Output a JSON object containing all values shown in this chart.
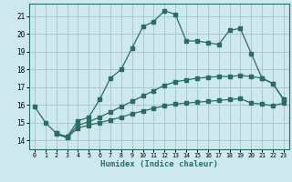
{
  "title": "",
  "xlabel": "Humidex (Indice chaleur)",
  "bg_color": "#cde8ee",
  "grid_color": "#a8c8d0",
  "line_color": "#2a6e62",
  "xlim": [
    -0.5,
    23.5
  ],
  "ylim": [
    13.5,
    21.7
  ],
  "yticks": [
    14,
    15,
    16,
    17,
    18,
    19,
    20,
    21
  ],
  "xticks": [
    0,
    1,
    2,
    3,
    4,
    5,
    6,
    7,
    8,
    9,
    10,
    11,
    12,
    13,
    14,
    15,
    16,
    17,
    18,
    19,
    20,
    21,
    22,
    23
  ],
  "curve1_x": [
    0,
    1,
    2,
    3,
    4,
    5,
    6,
    7,
    8,
    9,
    10,
    11,
    12,
    13,
    14,
    15,
    16,
    17,
    18,
    19,
    20,
    21,
    22,
    23
  ],
  "curve1_y": [
    15.9,
    15.0,
    14.4,
    14.2,
    15.1,
    15.3,
    16.3,
    17.5,
    18.0,
    19.2,
    20.4,
    20.7,
    21.3,
    21.1,
    19.6,
    19.6,
    19.5,
    19.4,
    20.2,
    20.3,
    18.9,
    17.5,
    17.2,
    16.3
  ],
  "curve2_x": [
    2,
    3,
    4,
    5,
    6,
    7,
    8,
    9,
    10,
    11,
    12,
    13,
    14,
    15,
    16,
    17,
    18,
    19,
    20,
    21,
    22,
    23
  ],
  "curve2_y": [
    14.4,
    14.2,
    14.85,
    15.05,
    15.3,
    15.6,
    15.9,
    16.2,
    16.5,
    16.8,
    17.1,
    17.3,
    17.4,
    17.5,
    17.55,
    17.6,
    17.6,
    17.65,
    17.6,
    17.5,
    17.2,
    16.3
  ],
  "curve3_x": [
    2,
    3,
    4,
    5,
    6,
    7,
    8,
    9,
    10,
    11,
    12,
    13,
    14,
    15,
    16,
    17,
    18,
    19,
    20,
    21,
    22,
    23
  ],
  "curve3_y": [
    14.35,
    14.15,
    14.7,
    14.85,
    15.0,
    15.15,
    15.3,
    15.5,
    15.65,
    15.8,
    15.95,
    16.05,
    16.1,
    16.15,
    16.2,
    16.25,
    16.3,
    16.35,
    16.1,
    16.05,
    15.95,
    16.1
  ]
}
